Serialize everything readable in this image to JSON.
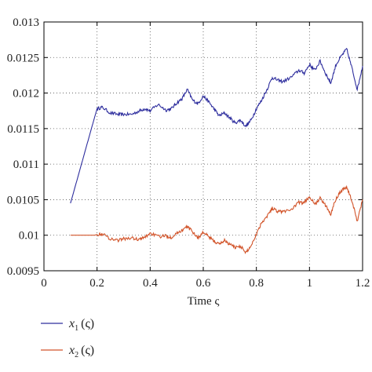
{
  "chart_data": {
    "type": "line",
    "xlabel": "Time ς",
    "xlim": [
      0,
      1.2
    ],
    "ylim": [
      0.0095,
      0.013
    ],
    "xticks": [
      "0",
      "0.2",
      "0.4",
      "0.6",
      "0.8",
      "1",
      "1.2"
    ],
    "yticks": [
      "0.0095",
      "0.01",
      "0.0105",
      "0.011",
      "0.0115",
      "0.012",
      "0.0125",
      "0.013"
    ],
    "grid": true,
    "legend_position": "bottom-left, below plot",
    "series": [
      {
        "name": "x1(ς)",
        "label_var": "x",
        "label_sub": "1",
        "label_arg": "ς",
        "color": "#2e2e9e",
        "x": [
          0.1,
          0.13,
          0.16,
          0.19,
          0.2,
          0.22,
          0.25,
          0.28,
          0.3,
          0.33,
          0.36,
          0.38,
          0.4,
          0.43,
          0.46,
          0.48,
          0.5,
          0.52,
          0.54,
          0.56,
          0.58,
          0.6,
          0.62,
          0.64,
          0.66,
          0.68,
          0.7,
          0.72,
          0.74,
          0.76,
          0.78,
          0.8,
          0.82,
          0.84,
          0.86,
          0.88,
          0.9,
          0.93,
          0.96,
          0.98,
          1.0,
          1.02,
          1.04,
          1.06,
          1.08,
          1.1,
          1.12,
          1.14,
          1.16,
          1.18,
          1.2
        ],
        "values": [
          0.01045,
          0.01085,
          0.01125,
          0.01165,
          0.01178,
          0.0118,
          0.01172,
          0.0117,
          0.0117,
          0.0117,
          0.01175,
          0.01178,
          0.01175,
          0.01184,
          0.01176,
          0.01178,
          0.01186,
          0.01192,
          0.01205,
          0.0119,
          0.01185,
          0.01196,
          0.01188,
          0.01178,
          0.01168,
          0.01172,
          0.01165,
          0.01158,
          0.01162,
          0.01153,
          0.01162,
          0.01178,
          0.0119,
          0.01205,
          0.01222,
          0.01218,
          0.01216,
          0.01222,
          0.01232,
          0.01228,
          0.0124,
          0.01232,
          0.01245,
          0.01228,
          0.01214,
          0.0124,
          0.01252,
          0.01262,
          0.01235,
          0.01205,
          0.01238
        ]
      },
      {
        "name": "x2(ς)",
        "label_var": "x",
        "label_sub": "2",
        "label_arg": "ς",
        "color": "#d2542a",
        "x": [
          0.1,
          0.13,
          0.16,
          0.19,
          0.2,
          0.22,
          0.25,
          0.28,
          0.3,
          0.33,
          0.36,
          0.38,
          0.4,
          0.43,
          0.46,
          0.48,
          0.5,
          0.52,
          0.54,
          0.56,
          0.58,
          0.6,
          0.62,
          0.64,
          0.66,
          0.68,
          0.7,
          0.72,
          0.74,
          0.76,
          0.78,
          0.8,
          0.82,
          0.84,
          0.86,
          0.88,
          0.9,
          0.93,
          0.96,
          0.98,
          1.0,
          1.02,
          1.04,
          1.06,
          1.08,
          1.1,
          1.12,
          1.14,
          1.16,
          1.18,
          1.2
        ],
        "values": [
          0.01,
          0.01,
          0.01,
          0.01,
          0.01001,
          0.01002,
          0.00995,
          0.00993,
          0.00995,
          0.00996,
          0.00994,
          0.00997,
          0.01003,
          0.00998,
          0.00999,
          0.00997,
          0.01003,
          0.01007,
          0.01012,
          0.01005,
          0.00996,
          0.01004,
          0.00998,
          0.00992,
          0.00987,
          0.00993,
          0.00987,
          0.00983,
          0.00985,
          0.00975,
          0.00985,
          0.01002,
          0.01018,
          0.01027,
          0.01038,
          0.01034,
          0.01033,
          0.01036,
          0.01046,
          0.01045,
          0.01055,
          0.01043,
          0.01052,
          0.01042,
          0.0103,
          0.01052,
          0.01063,
          0.01068,
          0.01048,
          0.0102,
          0.0105
        ]
      }
    ]
  }
}
